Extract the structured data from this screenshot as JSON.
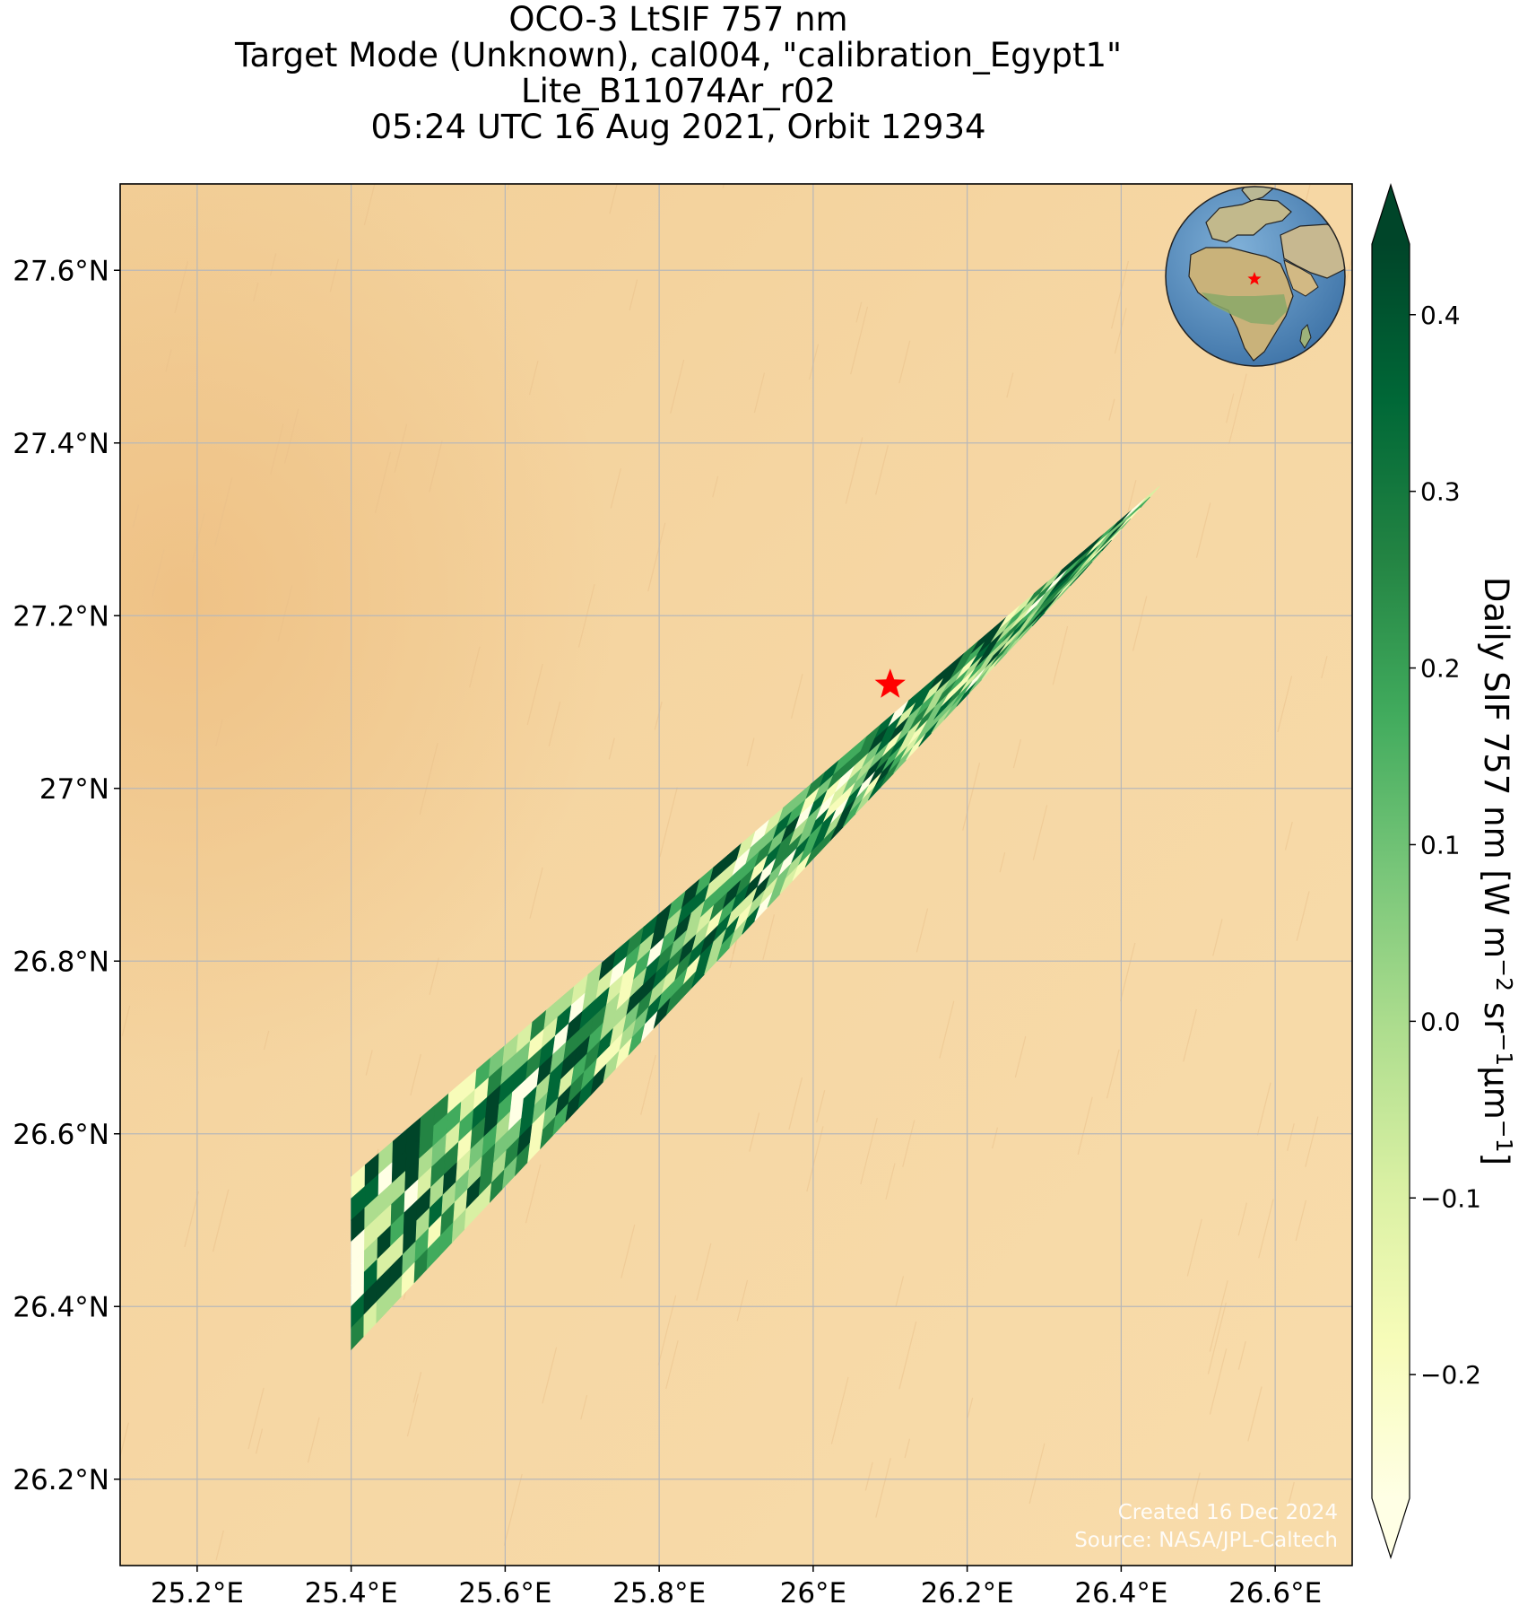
{
  "title": {
    "line1": "OCO-3 LtSIF 757 nm",
    "line2": "Target Mode (Unknown), cal004, \"calibration_Egypt1\"",
    "line3": "Lite_B11074Ar_r02",
    "line4": "05:24 UTC 16 Aug 2021, Orbit 12934"
  },
  "map": {
    "lon_range": [
      25.1,
      26.7
    ],
    "lat_range": [
      26.1,
      27.7
    ],
    "lon_ticks": [
      {
        "value": 25.2,
        "label": "25.2°E"
      },
      {
        "value": 25.4,
        "label": "25.4°E"
      },
      {
        "value": 25.6,
        "label": "25.6°E"
      },
      {
        "value": 25.8,
        "label": "25.8°E"
      },
      {
        "value": 26.0,
        "label": "26°E"
      },
      {
        "value": 26.2,
        "label": "26.2°E"
      },
      {
        "value": 26.4,
        "label": "26.4°E"
      },
      {
        "value": 26.6,
        "label": "26.6°E"
      }
    ],
    "lat_ticks": [
      {
        "value": 26.2,
        "label": "26.2°N"
      },
      {
        "value": 26.4,
        "label": "26.4°N"
      },
      {
        "value": 26.6,
        "label": "26.6°N"
      },
      {
        "value": 26.8,
        "label": "26.8°N"
      },
      {
        "value": 27.0,
        "label": "27°N"
      },
      {
        "value": 27.2,
        "label": "27.2°N"
      },
      {
        "value": 27.4,
        "label": "27.4°N"
      },
      {
        "value": 27.6,
        "label": "27.6°N"
      }
    ],
    "grid": true,
    "target_marker": {
      "lon": 26.1,
      "lat": 27.12,
      "color": "#ff0000",
      "shape": "star"
    },
    "swath": {
      "corners_lonlat": [
        [
          25.4,
          26.55
        ],
        [
          26.45,
          27.35
        ],
        [
          26.35,
          27.25
        ],
        [
          25.4,
          26.35
        ]
      ],
      "colormap": "YlGn"
    },
    "background_colors": {
      "sand_light": "#f7d9a6",
      "sand_dark": "#efc285"
    },
    "inset_globe": {
      "target_color": "#ff0000",
      "land_color": "#c9b98a",
      "ocean_color": "#5f92c2"
    }
  },
  "colorbar": {
    "label_main": "Daily SIF 757 nm [W m",
    "label_sup1": "−2",
    "label_mid1": " sr",
    "label_sup2": "−1",
    "label_mid2": "μm",
    "label_sup3": "−1",
    "label_end": "]",
    "range": [
      -0.27,
      0.44
    ],
    "extend": "both",
    "ticks": [
      {
        "value": 0.4,
        "label": "0.4"
      },
      {
        "value": 0.3,
        "label": "0.3"
      },
      {
        "value": 0.2,
        "label": "0.2"
      },
      {
        "value": 0.1,
        "label": "0.1"
      },
      {
        "value": 0.0,
        "label": "0.0"
      },
      {
        "value": -0.1,
        "label": "−0.1"
      },
      {
        "value": -0.2,
        "label": "−0.2"
      }
    ],
    "colors": [
      "#ffffe5",
      "#f7fcb9",
      "#d9f0a3",
      "#addd8e",
      "#78c679",
      "#41ab5d",
      "#238443",
      "#006837",
      "#004529"
    ]
  },
  "footer": {
    "created": "Created 16 Dec 2024",
    "source": "Source: NASA/JPL-Caltech"
  }
}
